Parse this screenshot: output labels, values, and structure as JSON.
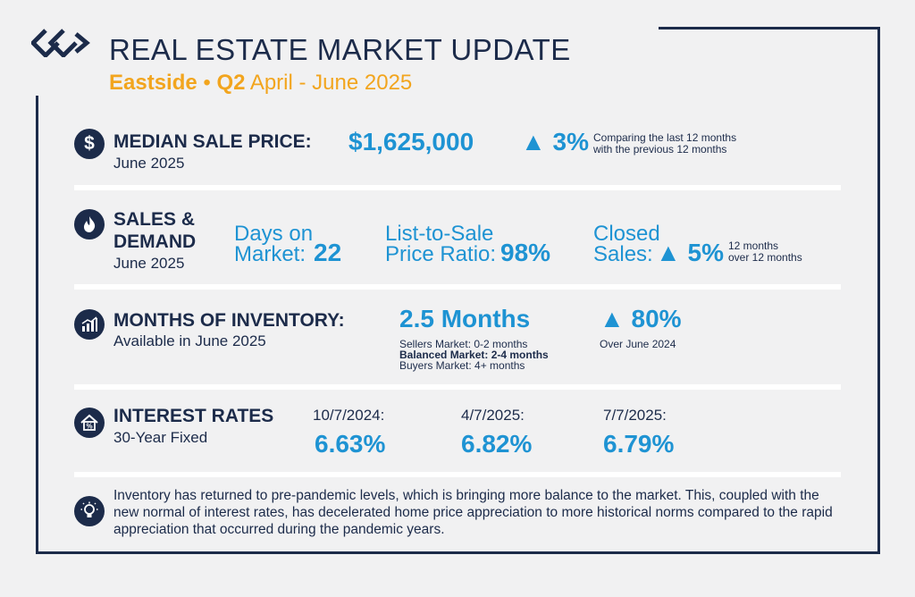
{
  "header": {
    "title": "REAL ESTATE MARKET UPDATE",
    "region": "Eastside",
    "bullet": "•",
    "quarter": "Q2",
    "period": "April - June 2025"
  },
  "median": {
    "label": "MEDIAN SALE PRICE:",
    "date": "June 2025",
    "value": "$1,625,000",
    "change": "▲ 3%",
    "note_line1": "Comparing the last 12 months",
    "note_line2": "with the previous 12 months"
  },
  "sales": {
    "label_line1": "SALES &",
    "label_line2": "DEMAND",
    "date": "June 2025",
    "dom_line1": "Days on",
    "dom_line2": "Market:",
    "dom_value": "22",
    "ratio_line1": "List-to-Sale",
    "ratio_line2": "Price Ratio:",
    "ratio_value": "98%",
    "closed_line1": "Closed",
    "closed_line2": "Sales:",
    "closed_value": "▲ 5%",
    "closed_note1": "12 months",
    "closed_note2": "over 12 months"
  },
  "inventory": {
    "label": "MONTHS OF INVENTORY:",
    "sub": "Available in June 2025",
    "value": "2.5 Months",
    "sellers": "Sellers Market: 0-2 months",
    "balanced": "Balanced Market: 2-4 months",
    "buyers": "Buyers Market: 4+ months",
    "change": "▲ 80%",
    "change_note": "Over June 2024"
  },
  "rates": {
    "label": "INTEREST RATES",
    "sub": "30-Year Fixed",
    "items": [
      {
        "date": "10/7/2024:",
        "value": "6.63%"
      },
      {
        "date": "4/7/2025:",
        "value": "6.82%"
      },
      {
        "date": "7/7/2025:",
        "value": "6.79%"
      }
    ]
  },
  "footer": {
    "text": "Inventory has returned to pre-pandemic levels, which is bringing more balance to the market. This, coupled with the new normal of interest rates, has decelerated home price appreciation to more historical norms compared to the rapid appreciation that occurred during the pandemic years."
  },
  "icons": {
    "dollar": "$",
    "percent": "%"
  },
  "colors": {
    "navy": "#1c2b4a",
    "blue": "#1e93d3",
    "gold": "#f2a51e",
    "background": "#f1f1f2"
  }
}
